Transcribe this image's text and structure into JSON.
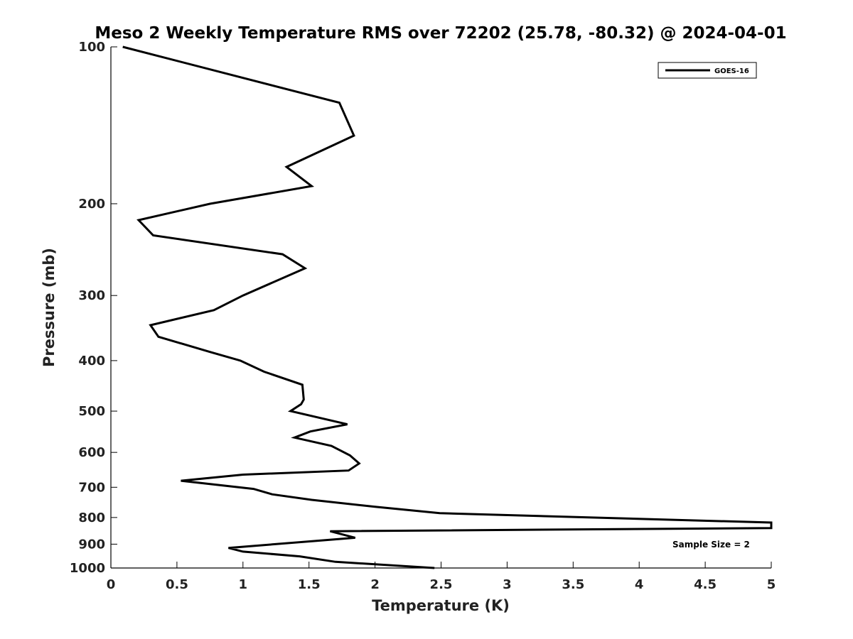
{
  "chart_data": {
    "type": "line",
    "title": "Meso 2 Weekly Temperature RMS over 72202 (25.78, -80.32) @ 2024-04-01",
    "xlabel": "Temperature (K)",
    "ylabel": "Pressure (mb)",
    "xlim": [
      0,
      5
    ],
    "ylim": [
      100,
      1000
    ],
    "y_scale": "log",
    "y_reversed": true,
    "x_ticks": [
      "0",
      "0.5",
      "1",
      "1.5",
      "2",
      "2.5",
      "3",
      "3.5",
      "4",
      "4.5",
      "5"
    ],
    "y_ticks": [
      "100",
      "200",
      "300",
      "400",
      "500",
      "600",
      "700",
      "800",
      "900",
      "1000"
    ],
    "grid": false,
    "legend_position": "top-right",
    "annotation": "Sample Size = 2",
    "series": [
      {
        "name": "GOES-16",
        "color": "#000000",
        "points": [
          [
            0.09,
            100
          ],
          [
            1.73,
            128
          ],
          [
            1.84,
            148
          ],
          [
            1.33,
            170
          ],
          [
            1.52,
            185
          ],
          [
            0.75,
            200
          ],
          [
            0.21,
            215
          ],
          [
            0.32,
            230
          ],
          [
            1.3,
            250
          ],
          [
            1.47,
            266
          ],
          [
            1.0,
            300
          ],
          [
            0.78,
            320
          ],
          [
            0.3,
            342
          ],
          [
            0.36,
            360
          ],
          [
            0.75,
            385
          ],
          [
            0.98,
            400
          ],
          [
            1.16,
            420
          ],
          [
            1.45,
            445
          ],
          [
            1.46,
            475
          ],
          [
            1.44,
            485
          ],
          [
            1.36,
            500
          ],
          [
            1.79,
            530
          ],
          [
            1.51,
            547
          ],
          [
            1.39,
            562
          ],
          [
            1.67,
            583
          ],
          [
            1.81,
            608
          ],
          [
            1.88,
            630
          ],
          [
            1.8,
            650
          ],
          [
            1.0,
            662
          ],
          [
            0.53,
            680
          ],
          [
            1.08,
            705
          ],
          [
            1.22,
            722
          ],
          [
            1.52,
            740
          ],
          [
            2.0,
            763
          ],
          [
            2.49,
            785
          ],
          [
            5.0,
            818
          ],
          [
            5.0,
            838
          ],
          [
            1.66,
            850
          ],
          [
            1.85,
            875
          ],
          [
            0.89,
            915
          ],
          [
            1.0,
            930
          ],
          [
            1.43,
            950
          ],
          [
            1.7,
            973
          ],
          [
            2.45,
            1000
          ]
        ]
      }
    ]
  }
}
